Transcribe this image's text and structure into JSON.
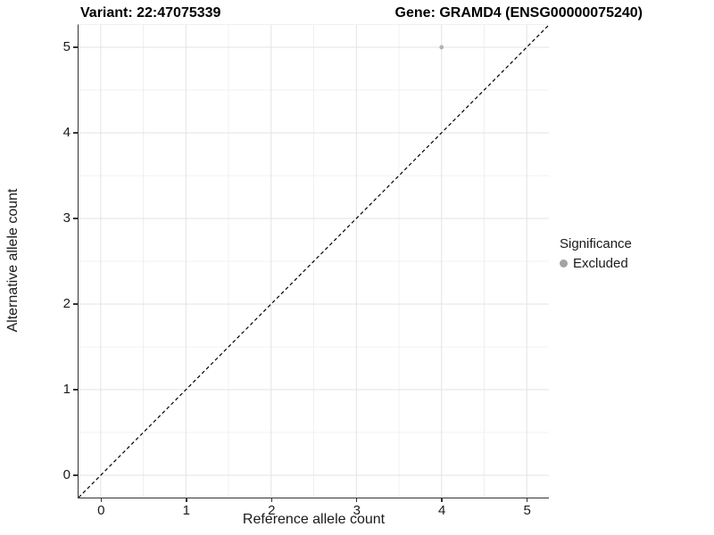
{
  "colors": {
    "background": "#ffffff",
    "axis_line": "#333333",
    "grid_major": "#e3e3e3",
    "grid_minor": "#f0f0f0",
    "text": "#1a1a1a",
    "title_text": "#000000",
    "point_excluded": "#b2b2b2",
    "legend_dot": "#a3a3a3",
    "reference_line": "#000000"
  },
  "chart_data": {
    "type": "scatter",
    "title_left": "Variant: 22:47075339",
    "title_right": "Gene: GRAMD4 (ENSG00000075240)",
    "xlabel": "Reference allele count",
    "ylabel": "Alternative allele count",
    "xlim": [
      -0.26,
      5.26
    ],
    "ylim": [
      -0.26,
      5.26
    ],
    "x_ticks": [
      0,
      1,
      2,
      3,
      4,
      5
    ],
    "y_ticks": [
      0,
      1,
      2,
      3,
      4,
      5
    ],
    "x_minor": [
      0.5,
      1.5,
      2.5,
      3.5,
      4.5
    ],
    "y_minor": [
      0.5,
      1.5,
      2.5,
      3.5,
      4.5
    ],
    "grid": "major+minor",
    "series": [
      {
        "name": "Excluded",
        "color": "#b2b2b2",
        "marker": "circle",
        "points": [
          {
            "x": 4,
            "y": 5
          }
        ]
      }
    ],
    "reference_line": {
      "kind": "identity",
      "from": [
        -0.26,
        -0.26
      ],
      "to": [
        5.26,
        5.26
      ],
      "style": "dashed",
      "color": "#000000"
    },
    "legend": {
      "title": "Significance",
      "position": "right",
      "entries": [
        {
          "label": "Excluded",
          "marker": "circle",
          "color": "#a3a3a3"
        }
      ]
    }
  }
}
